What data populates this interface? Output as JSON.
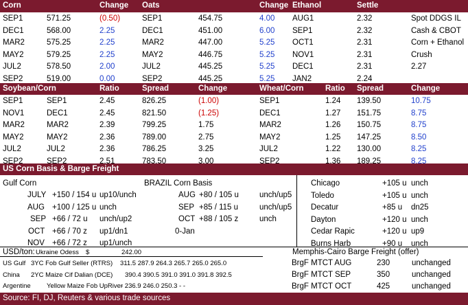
{
  "top": {
    "headers": [
      "Corn",
      "Change",
      "Oats",
      "Change",
      "Ethanol",
      "Settle"
    ],
    "rows": [
      {
        "c": "SEP1",
        "cv": "571.25",
        "cc": "(0.50)",
        "cs": "red",
        "o": "SEP1",
        "ov": "454.75",
        "oc": "4.00",
        "os": "blue",
        "e": "AUG1",
        "ev": "2.32",
        "x": "Spot DDGS IL",
        "xv": ""
      },
      {
        "c": "DEC1",
        "cv": "568.00",
        "cc": "2.25",
        "cs": "blue",
        "o": "DEC1",
        "ov": "451.00",
        "oc": "6.00",
        "os": "blue",
        "e": "SEP1",
        "ev": "2.32",
        "x": "Cash & CBOT",
        "xv": ""
      },
      {
        "c": "MAR2",
        "cv": "575.25",
        "cc": "2.25",
        "cs": "blue",
        "o": "MAR2",
        "ov": "447.00",
        "oc": "5.25",
        "os": "blue",
        "e": "OCT1",
        "ev": "2.31",
        "x": "Corn + Ethanol",
        "xv": ""
      },
      {
        "c": "MAY2",
        "cv": "579.25",
        "cc": "2.25",
        "cs": "blue",
        "o": "MAY2",
        "ov": "446.75",
        "oc": "5.25",
        "os": "blue",
        "e": "NOV1",
        "ev": "2.31",
        "x": "Crush",
        "xv": ""
      },
      {
        "c": "JUL2",
        "cv": "578.50",
        "cc": "2.00",
        "cs": "blue",
        "o": "JUL2",
        "ov": "445.25",
        "oc": "5.25",
        "os": "blue",
        "e": "DEC1",
        "ev": "2.31",
        "x": "2.27",
        "xv": ""
      },
      {
        "c": "SEP2",
        "cv": "519.00",
        "cc": "0.00",
        "cs": "blue",
        "o": "SEP2",
        "ov": "445.25",
        "oc": "5.25",
        "os": "blue",
        "e": "JAN2",
        "ev": "2.24",
        "x": "",
        "xv": ""
      }
    ]
  },
  "mid": {
    "headers": [
      "Soybean/Corn",
      "Ratio",
      "Spread",
      "Change",
      "Wheat/Corn",
      "Ratio",
      "Spread",
      "Change"
    ],
    "rows": [
      {
        "a": "SEP1",
        "b": "SEP1",
        "r": "2.45",
        "s": "826.25",
        "c": "(1.00)",
        "cs": "red",
        "wa": "SEP1",
        "wr": "1.24",
        "ws": "139.50",
        "wc": "10.75",
        "wcs": "blue"
      },
      {
        "a": "NOV1",
        "b": "DEC1",
        "r": "2.45",
        "s": "821.50",
        "c": "(1.25)",
        "cs": "red",
        "wa": "DEC1",
        "wr": "1.27",
        "ws": "151.75",
        "wc": "8.75",
        "wcs": "blue"
      },
      {
        "a": "MAR2",
        "b": "MAR2",
        "r": "2.39",
        "s": "799.25",
        "c": "1.75",
        "cs": "",
        "wa": "MAR2",
        "wr": "1.26",
        "ws": "150.75",
        "wc": "8.75",
        "wcs": "blue"
      },
      {
        "a": "MAY2",
        "b": "MAY2",
        "r": "2.36",
        "s": "789.00",
        "c": "2.75",
        "cs": "",
        "wa": "MAY2",
        "wr": "1.25",
        "ws": "147.25",
        "wc": "8.50",
        "wcs": "blue"
      },
      {
        "a": "JUL2",
        "b": "JUL2",
        "r": "2.36",
        "s": "786.25",
        "c": "3.25",
        "cs": "",
        "wa": "JUL2",
        "wr": "1.22",
        "ws": "130.00",
        "wc": "8.25",
        "wcs": "blue"
      },
      {
        "a": "SEP2",
        "b": "SEP2",
        "r": "2.51",
        "s": "783.50",
        "c": "3.00",
        "cs": "",
        "wa": "SEP2",
        "wr": "1.36",
        "ws": "189.25",
        "wc": "8.25",
        "wcs": "blue"
      }
    ]
  },
  "basis": {
    "title": "US Corn Basis & Barge Freight",
    "gulf_title": "Gulf Corn",
    "brazil_title": "BRAZIL Corn Basis",
    "gulf": [
      {
        "m": "JULY",
        "v": "+150 / 154 u",
        "c": "up10/unch"
      },
      {
        "m": "AUG",
        "v": "+100 / 125 u",
        "c": "unch"
      },
      {
        "m": "SEP",
        "v": "+66 / 72 u",
        "c": "unch/up2"
      },
      {
        "m": "OCT",
        "v": "+66 / 70 z",
        "c": "up1/dn1"
      },
      {
        "m": "NOV",
        "v": "+66 / 72 z",
        "c": "up1/unch"
      }
    ],
    "brazil": [
      {
        "m": "AUG",
        "v": "+80 / 105 u",
        "c": "unch/up5"
      },
      {
        "m": "SEP",
        "v": "+85 / 115 u",
        "c": "unch/up5"
      },
      {
        "m": "OCT",
        "v": "+88 / 105 z",
        "c": "unch"
      },
      {
        "m": "0-Jan",
        "v": "",
        "c": ""
      }
    ],
    "cities": [
      {
        "n": "Chicago",
        "v": "+105 u",
        "c": "unch"
      },
      {
        "n": "Toledo",
        "v": "+105 u",
        "c": "unch"
      },
      {
        "n": "Decatur",
        "v": "+85 u",
        "c": "dn25"
      },
      {
        "n": "Dayton",
        "v": "+120 u",
        "c": "unch"
      },
      {
        "n": "Cedar Rapic",
        "v": "+120 u",
        "c": "up9"
      },
      {
        "n": "Burns Harb",
        "v": "+90 u",
        "c": "unch"
      }
    ]
  },
  "bottom": {
    "usd_label": "USD/ton:",
    "odessa_label": "Ukraine Odess",
    "odessa_cur": "$",
    "odessa_val": "242.00",
    "barge_title": "Memphis-Cairo Barge Freight (offer)",
    "lines": [
      {
        "a": "US Gulf",
        "b": "3YC Fob Gulf Seller (RTRS)",
        "v": "311.5  287.9  264.3  265.7  265.0  265.0"
      },
      {
        "a": "China",
        "b": "2YC Maize Cif Dalian (DCE)",
        "v": "390.4  390.5  391.0  391.0  391.8  392.5"
      },
      {
        "a": "Argentine",
        "b": "Yellow Maize Fob UpRiver",
        "v": " -       236.9  246.0  250.3   -       -"
      }
    ],
    "barge": [
      {
        "n": "BrgF MTCT AUG",
        "v": "230",
        "c": "unchanged"
      },
      {
        "n": "BrgF MTCT SEP",
        "v": "350",
        "c": "unchanged"
      },
      {
        "n": "BrgF MTCT OCT",
        "v": "425",
        "c": "unchanged"
      }
    ],
    "source": "Source: FI, DJ, Reuters & various trade sources"
  }
}
